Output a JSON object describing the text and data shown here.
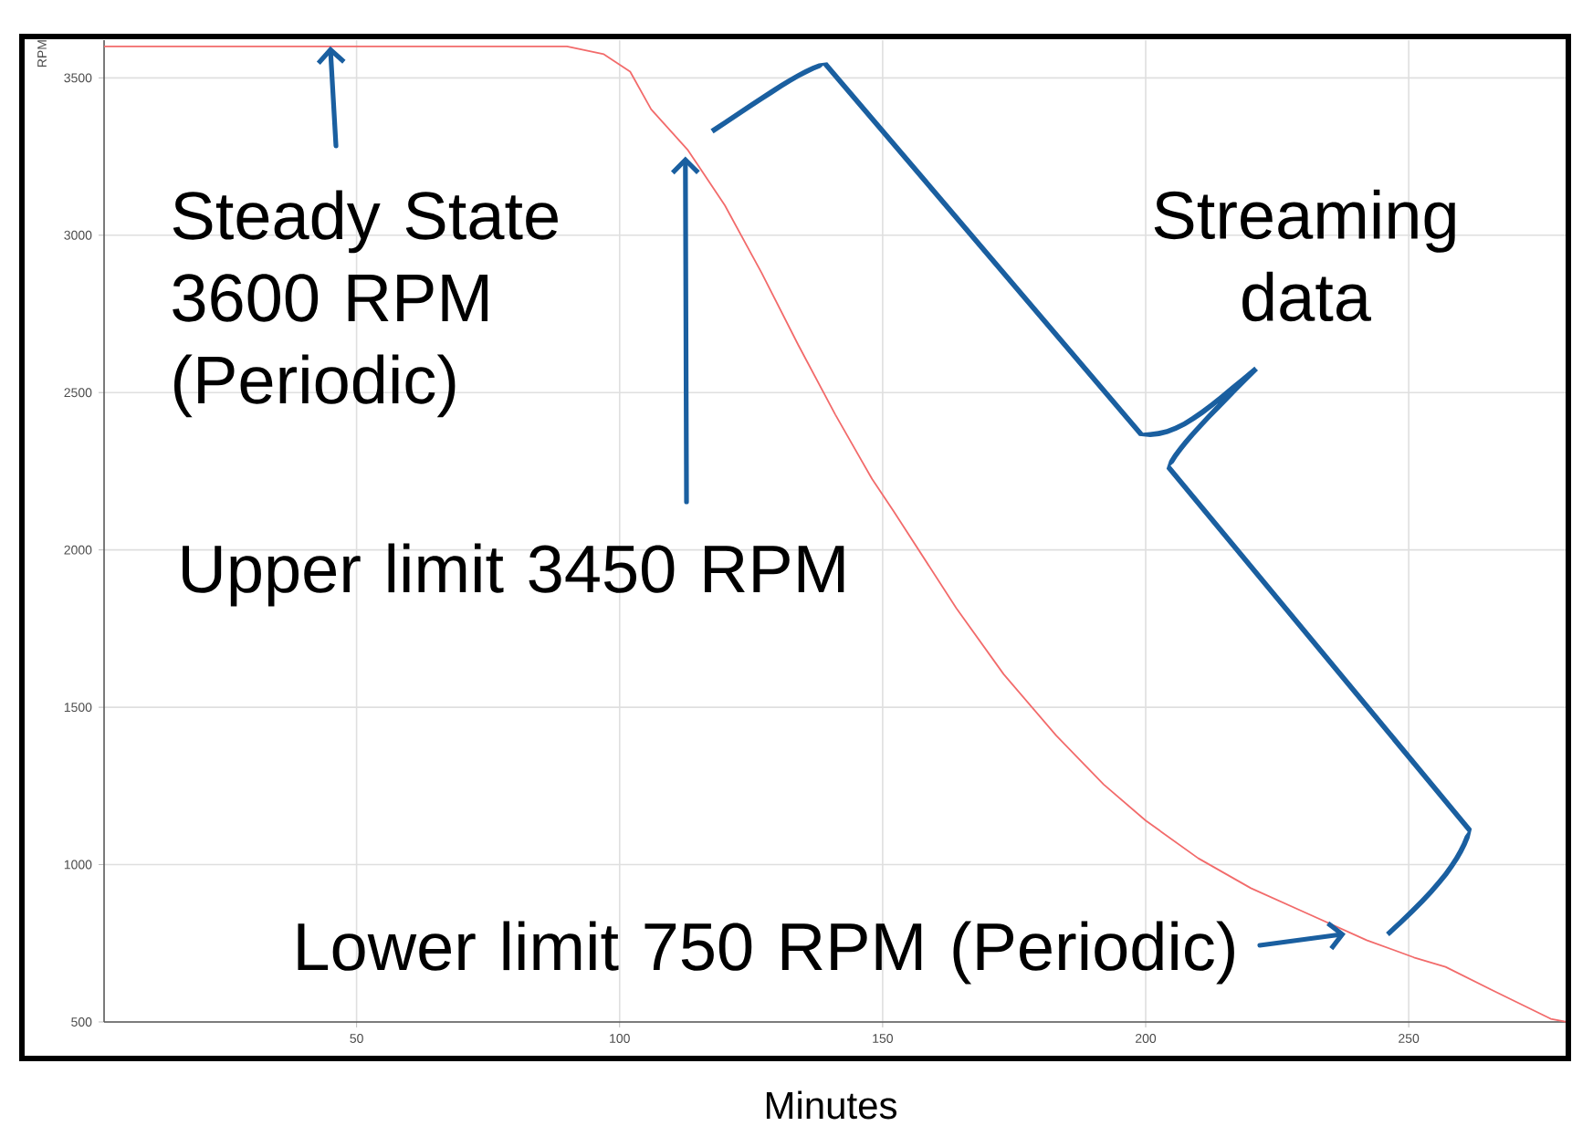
{
  "chart_data": {
    "type": "line",
    "xlabel": "Minutes",
    "ylabel": "RPM",
    "color": "#f26b6b",
    "grid": true,
    "x": [
      2,
      20,
      40,
      60,
      80,
      90,
      97,
      102,
      106,
      113,
      120,
      127,
      134,
      141,
      148,
      152,
      164,
      173,
      183,
      192,
      200,
      210,
      220,
      230,
      242,
      251,
      257,
      266,
      277,
      280
    ],
    "values": [
      3600,
      3600,
      3600,
      3600,
      3600,
      3600,
      3575,
      3520,
      3400,
      3270,
      3095,
      2880,
      2650,
      2430,
      2225,
      2125,
      1815,
      1605,
      1410,
      1255,
      1140,
      1020,
      925,
      850,
      760,
      705,
      675,
      600,
      510,
      500
    ],
    "xlim": [
      2,
      280
    ],
    "ylim": [
      500,
      3620
    ],
    "xticks": [
      50,
      100,
      150,
      200,
      250
    ],
    "yticks": [
      500,
      1000,
      1500,
      2000,
      2500,
      3000,
      3500
    ],
    "annotations": [
      {
        "text": "Steady State 3600 RPM (Periodic)",
        "x": 45,
        "y": 3600
      },
      {
        "text": "Upper limit 3450 RPM",
        "x": 112.5,
        "y": 3250
      },
      "Streaming data",
      {
        "text": "Lower limit 750 RPM (Periodic)",
        "x": 238,
        "y": 780
      }
    ]
  }
}
